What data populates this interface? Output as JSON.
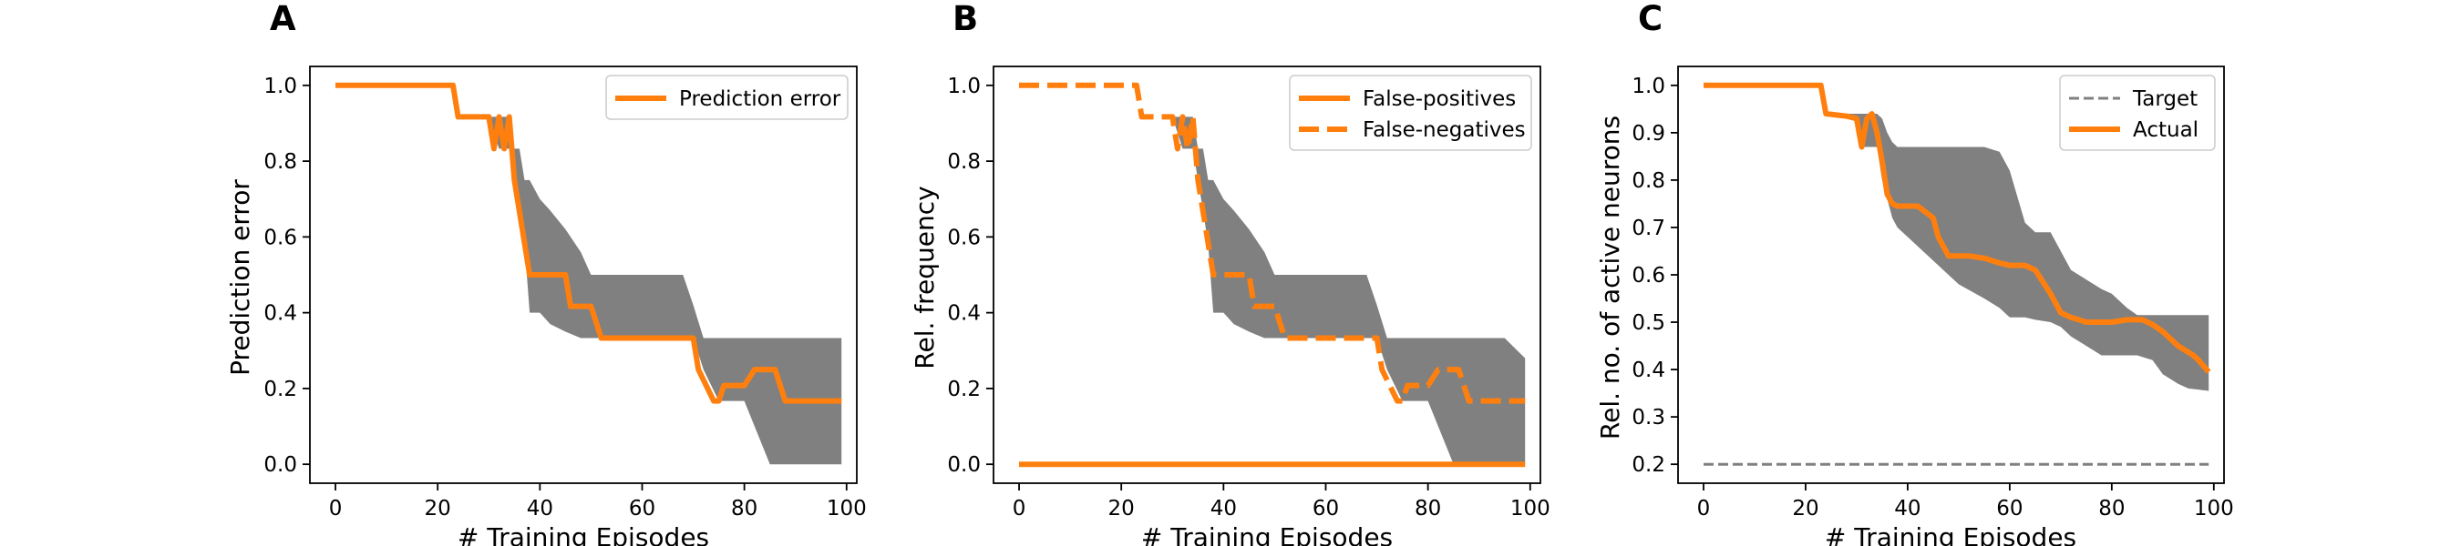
{
  "chart_data": [
    {
      "type": "line",
      "panel_label": "A",
      "xlabel": "# Training Episodes",
      "ylabel": "Prediction error",
      "xlim": [
        -5,
        102
      ],
      "ylim": [
        -0.05,
        1.05
      ],
      "xticks": [
        0,
        20,
        40,
        60,
        80,
        100
      ],
      "xtick_labels": [
        "0",
        "20",
        "40",
        "60",
        "80",
        "100"
      ],
      "yticks": [
        0.0,
        0.2,
        0.4,
        0.6,
        0.8,
        1.0
      ],
      "ytick_labels": [
        "0.0",
        "0.2",
        "0.4",
        "0.6",
        "0.8",
        "1.0"
      ],
      "legend_position": "top-right",
      "grid": false,
      "series": [
        {
          "name": "Prediction error",
          "color": "#ff7f0e",
          "style": "solid",
          "x": [
            0,
            23,
            24,
            30,
            31,
            32,
            33,
            34,
            35,
            36,
            37,
            38,
            40,
            41,
            45,
            46,
            48,
            49,
            50,
            52,
            54,
            55,
            70,
            71,
            74,
            75,
            76,
            80,
            82,
            86,
            88,
            99
          ],
          "y": [
            1.0,
            1.0,
            0.917,
            0.917,
            0.833,
            0.917,
            0.833,
            0.917,
            0.75,
            0.667,
            0.583,
            0.5,
            0.5,
            0.5,
            0.5,
            0.417,
            0.417,
            0.417,
            0.417,
            0.333,
            0.333,
            0.333,
            0.333,
            0.25,
            0.167,
            0.167,
            0.208,
            0.208,
            0.25,
            0.25,
            0.167,
            0.167
          ]
        }
      ],
      "band": {
        "color": "#808080",
        "x": [
          0,
          23,
          24,
          30,
          32,
          33,
          34,
          35,
          36,
          37,
          38,
          40,
          42,
          45,
          48,
          50,
          53,
          55,
          60,
          62,
          65,
          68,
          70,
          72,
          75,
          77,
          78,
          80,
          85,
          90,
          95,
          99
        ],
        "upper": [
          1.0,
          1.0,
          0.917,
          0.917,
          0.917,
          0.917,
          0.917,
          0.833,
          0.833,
          0.75,
          0.75,
          0.7,
          0.67,
          0.62,
          0.56,
          0.5,
          0.5,
          0.5,
          0.5,
          0.5,
          0.5,
          0.5,
          0.42,
          0.333,
          0.333,
          0.333,
          0.333,
          0.333,
          0.333,
          0.333,
          0.333,
          0.333
        ],
        "lower": [
          1.0,
          1.0,
          0.917,
          0.917,
          0.833,
          0.833,
          0.833,
          0.75,
          0.67,
          0.58,
          0.4,
          0.4,
          0.37,
          0.35,
          0.333,
          0.333,
          0.333,
          0.333,
          0.333,
          0.333,
          0.333,
          0.333,
          0.333,
          0.25,
          0.167,
          0.167,
          0.167,
          0.167,
          0.0,
          0.0,
          0.0,
          0.0
        ]
      }
    },
    {
      "type": "line",
      "panel_label": "B",
      "xlabel": "# Training Episodes",
      "ylabel": "Rel. frequency",
      "xlim": [
        -5,
        102
      ],
      "ylim": [
        -0.05,
        1.05
      ],
      "xticks": [
        0,
        20,
        40,
        60,
        80,
        100
      ],
      "xtick_labels": [
        "0",
        "20",
        "40",
        "60",
        "80",
        "100"
      ],
      "yticks": [
        0.0,
        0.2,
        0.4,
        0.6,
        0.8,
        1.0
      ],
      "ytick_labels": [
        "0.0",
        "0.2",
        "0.4",
        "0.6",
        "0.8",
        "1.0"
      ],
      "legend_position": "top-right",
      "grid": false,
      "series": [
        {
          "name": "False-positives",
          "color": "#ff7f0e",
          "style": "solid",
          "x": [
            0,
            99
          ],
          "y": [
            0.0,
            0.0
          ]
        },
        {
          "name": "False-negatives",
          "color": "#ff7f0e",
          "style": "dashed",
          "x": [
            0,
            23,
            24,
            30,
            31,
            32,
            33,
            34,
            35,
            36,
            37,
            38,
            40,
            41,
            45,
            46,
            48,
            49,
            50,
            52,
            54,
            55,
            70,
            71,
            74,
            75,
            76,
            80,
            82,
            86,
            88,
            99
          ],
          "y": [
            1.0,
            1.0,
            0.917,
            0.917,
            0.833,
            0.917,
            0.833,
            0.917,
            0.75,
            0.667,
            0.583,
            0.5,
            0.5,
            0.5,
            0.5,
            0.417,
            0.417,
            0.417,
            0.417,
            0.333,
            0.333,
            0.333,
            0.333,
            0.25,
            0.167,
            0.167,
            0.208,
            0.208,
            0.25,
            0.25,
            0.167,
            0.167
          ]
        }
      ],
      "band": {
        "color": "#808080",
        "x": [
          0,
          23,
          24,
          30,
          32,
          33,
          34,
          35,
          36,
          37,
          38,
          40,
          42,
          45,
          48,
          50,
          53,
          55,
          60,
          62,
          65,
          68,
          70,
          72,
          75,
          77,
          78,
          80,
          85,
          90,
          95,
          99
        ],
        "upper": [
          1.0,
          1.0,
          0.917,
          0.917,
          0.917,
          0.917,
          0.917,
          0.833,
          0.833,
          0.75,
          0.75,
          0.7,
          0.67,
          0.62,
          0.56,
          0.5,
          0.5,
          0.5,
          0.5,
          0.5,
          0.5,
          0.5,
          0.42,
          0.333,
          0.333,
          0.333,
          0.333,
          0.333,
          0.333,
          0.333,
          0.333,
          0.28
        ],
        "lower": [
          1.0,
          1.0,
          0.917,
          0.917,
          0.833,
          0.833,
          0.833,
          0.75,
          0.67,
          0.58,
          0.4,
          0.4,
          0.37,
          0.35,
          0.333,
          0.333,
          0.333,
          0.333,
          0.333,
          0.333,
          0.333,
          0.333,
          0.333,
          0.25,
          0.167,
          0.167,
          0.167,
          0.167,
          0.0,
          0.0,
          0.0,
          0.0
        ]
      }
    },
    {
      "type": "line",
      "panel_label": "C",
      "xlabel": "# Training Episodes",
      "ylabel": "Rel. no. of active neurons",
      "xlim": [
        -5,
        102
      ],
      "ylim": [
        0.16,
        1.04
      ],
      "xticks": [
        0,
        20,
        40,
        60,
        80,
        100
      ],
      "xtick_labels": [
        "0",
        "20",
        "40",
        "60",
        "80",
        "100"
      ],
      "yticks": [
        0.2,
        0.3,
        0.4,
        0.5,
        0.6,
        0.7,
        0.8,
        0.9,
        1.0
      ],
      "ytick_labels": [
        "0.2",
        "0.3",
        "0.4",
        "0.5",
        "0.6",
        "0.7",
        "0.8",
        "0.9",
        "1.0"
      ],
      "legend_position": "top-right",
      "grid": false,
      "series": [
        {
          "name": "Target",
          "color": "#808080",
          "style": "dashed-thin",
          "x": [
            0,
            99
          ],
          "y": [
            0.2,
            0.2
          ]
        },
        {
          "name": "Actual",
          "color": "#ff7f0e",
          "style": "solid",
          "x": [
            0,
            23,
            24,
            28,
            30,
            31,
            32,
            33,
            34,
            35,
            36,
            37,
            38,
            40,
            42,
            45,
            46,
            48,
            52,
            55,
            58,
            60,
            63,
            65,
            68,
            70,
            72,
            75,
            78,
            80,
            83,
            86,
            88,
            90,
            93,
            96,
            97,
            99
          ],
          "y": [
            1.0,
            1.0,
            0.94,
            0.935,
            0.93,
            0.87,
            0.93,
            0.94,
            0.9,
            0.84,
            0.77,
            0.75,
            0.745,
            0.745,
            0.745,
            0.72,
            0.68,
            0.64,
            0.64,
            0.635,
            0.625,
            0.62,
            0.62,
            0.61,
            0.56,
            0.52,
            0.51,
            0.5,
            0.5,
            0.5,
            0.505,
            0.505,
            0.495,
            0.48,
            0.45,
            0.43,
            0.42,
            0.395
          ]
        }
      ],
      "band": {
        "color": "#808080",
        "x": [
          0,
          23,
          24,
          28,
          30,
          31,
          32,
          33,
          34,
          35,
          36,
          37,
          38,
          40,
          45,
          50,
          55,
          58,
          60,
          63,
          65,
          68,
          70,
          72,
          75,
          78,
          80,
          83,
          85,
          88,
          90,
          93,
          95,
          99
        ],
        "upper": [
          1.0,
          1.0,
          0.94,
          0.94,
          0.94,
          0.94,
          0.94,
          0.94,
          0.94,
          0.93,
          0.9,
          0.88,
          0.87,
          0.87,
          0.87,
          0.87,
          0.87,
          0.86,
          0.82,
          0.71,
          0.69,
          0.69,
          0.65,
          0.61,
          0.59,
          0.57,
          0.56,
          0.53,
          0.515,
          0.515,
          0.515,
          0.515,
          0.515,
          0.515
        ],
        "lower": [
          1.0,
          1.0,
          0.94,
          0.93,
          0.93,
          0.87,
          0.87,
          0.87,
          0.87,
          0.8,
          0.76,
          0.72,
          0.7,
          0.68,
          0.63,
          0.58,
          0.55,
          0.53,
          0.51,
          0.51,
          0.505,
          0.5,
          0.49,
          0.47,
          0.45,
          0.43,
          0.43,
          0.43,
          0.43,
          0.42,
          0.39,
          0.37,
          0.36,
          0.355
        ]
      }
    }
  ]
}
